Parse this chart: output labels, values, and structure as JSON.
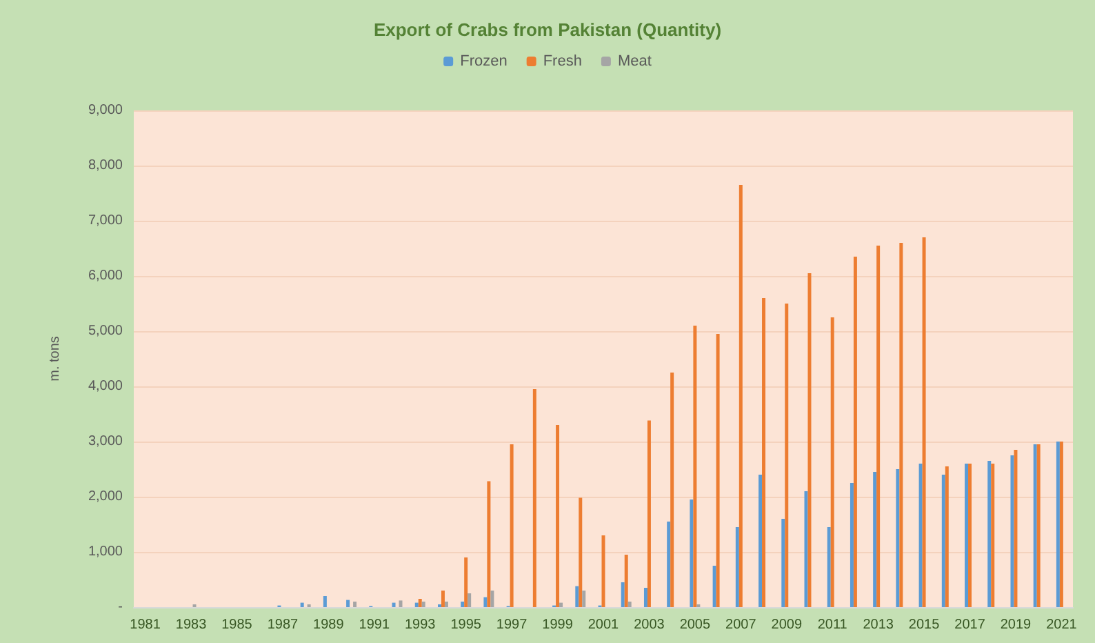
{
  "chart_data": {
    "type": "bar",
    "title": "Export of Crabs from Pakistan (Quantity)",
    "ylabel": "m. tons",
    "categories": [
      "1981",
      null,
      "1983",
      null,
      "1985",
      null,
      "1987",
      null,
      "1989",
      null,
      "1991",
      null,
      "1993",
      null,
      "1995",
      null,
      "1997",
      null,
      "1999",
      null,
      "2001",
      null,
      "2003",
      null,
      "2005",
      null,
      "2007",
      null,
      "2009",
      null,
      "2011",
      null,
      "2013",
      null,
      "2015",
      null,
      "2017",
      null,
      "2019",
      null,
      "2021"
    ],
    "series": [
      {
        "name": "Frozen",
        "color": "#5b9bd5",
        "values": [
          0,
          0,
          0,
          0,
          0,
          0,
          30,
          80,
          200,
          130,
          20,
          80,
          80,
          50,
          100,
          180,
          20,
          0,
          30,
          380,
          30,
          450,
          350,
          1550,
          1950,
          750,
          1450,
          2400,
          1600,
          2100,
          1450,
          2250,
          2450,
          2500,
          2600,
          2400,
          2600,
          2650,
          2750,
          2950,
          3000
        ]
      },
      {
        "name": "Fresh",
        "color": "#ed7d31",
        "values": [
          0,
          0,
          0,
          0,
          0,
          0,
          0,
          0,
          0,
          0,
          0,
          0,
          150,
          300,
          900,
          2280,
          2950,
          3950,
          3300,
          1980,
          1300,
          950,
          3380,
          4250,
          5100,
          4950,
          7650,
          5600,
          5500,
          6050,
          5250,
          6350,
          6550,
          6600,
          6700,
          2550,
          2600,
          2600,
          2850,
          2950,
          3000
        ]
      },
      {
        "name": "Meat",
        "color": "#a5a5a5",
        "values": [
          0,
          0,
          50,
          0,
          0,
          0,
          0,
          50,
          0,
          100,
          0,
          120,
          100,
          100,
          250,
          300,
          0,
          0,
          80,
          300,
          0,
          100,
          0,
          0,
          50,
          0,
          0,
          0,
          0,
          0,
          0,
          0,
          0,
          0,
          0,
          0,
          0,
          0,
          0,
          0,
          0
        ]
      }
    ],
    "ylim": [
      0,
      9000
    ],
    "yticks": [
      {
        "value": 0,
        "label": "-"
      },
      {
        "value": 1000,
        "label": "1,000"
      },
      {
        "value": 2000,
        "label": "2,000"
      },
      {
        "value": 3000,
        "label": "3,000"
      },
      {
        "value": 4000,
        "label": "4,000"
      },
      {
        "value": 5000,
        "label": "5,000"
      },
      {
        "value": 6000,
        "label": "6,000"
      },
      {
        "value": 7000,
        "label": "7,000"
      },
      {
        "value": 8000,
        "label": "8,000"
      },
      {
        "value": 9000,
        "label": "9,000"
      }
    ],
    "grid": "y",
    "legend": "top"
  }
}
